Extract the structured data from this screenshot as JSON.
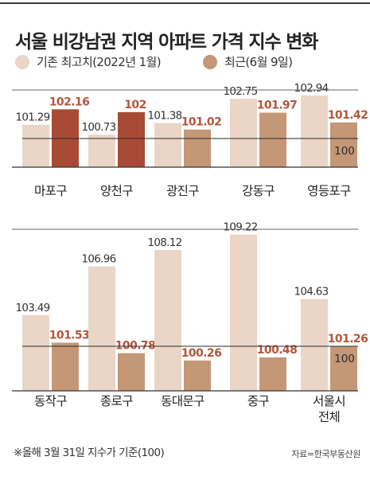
{
  "title": "서울 비강남권 지역 아파트 가격 지수 변화",
  "legend": {
    "peak_label": "기존 최고치(2022년 1월)",
    "recent_label": "최근(6월 9일)"
  },
  "colors": {
    "peak": "#ead5c6",
    "recent": "#c49777",
    "recent_highlight": "#a84b36",
    "value_peak": "#333333",
    "value_recent": "#b3563b",
    "baseline": "#2a2a2a"
  },
  "baseline_label": "100",
  "note": "※올해 3월 31일 지수가 기준(100)",
  "source": "자료=한국부동산원",
  "chart_data": [
    {
      "type": "bar",
      "categories": [
        "마포구",
        "양천구",
        "광진구",
        "강동구",
        "영등포구"
      ],
      "series": [
        {
          "name": "기존 최고치(2022년 1월)",
          "values": [
            101.29,
            100.73,
            101.38,
            102.75,
            102.94
          ]
        },
        {
          "name": "최근(6월 9일)",
          "values": [
            102.16,
            102,
            101.02,
            101.97,
            101.42
          ]
        }
      ],
      "value_labels": {
        "peak": [
          "101.29",
          "100.73",
          "101.38",
          "102.75",
          "102.94"
        ],
        "recent": [
          "102.16",
          "102",
          "101.02",
          "101.97",
          "101.42"
        ]
      },
      "highlight_recent": [
        true,
        true,
        false,
        false,
        false
      ],
      "baseline": 100,
      "ylim": [
        98.9,
        103.25
      ]
    },
    {
      "type": "bar",
      "categories": [
        "동작구",
        "종로구",
        "동대문구",
        "중구",
        "서울시\n전체"
      ],
      "series": [
        {
          "name": "기존 최고치(2022년 1월)",
          "values": [
            103.49,
            106.96,
            108.12,
            109.22,
            104.63
          ]
        },
        {
          "name": "최근(6월 9일)",
          "values": [
            101.53,
            100.78,
            100.26,
            100.48,
            101.26
          ]
        }
      ],
      "value_labels": {
        "peak": [
          "103.49",
          "106.96",
          "108.12",
          "109.22",
          "104.63"
        ],
        "recent": [
          "101.53",
          "100.78",
          "100.26",
          "100.48",
          "101.26"
        ]
      },
      "highlight_recent": [
        false,
        false,
        false,
        false,
        false
      ],
      "baseline": 100,
      "ylim": [
        98.1,
        109.6
      ]
    }
  ]
}
